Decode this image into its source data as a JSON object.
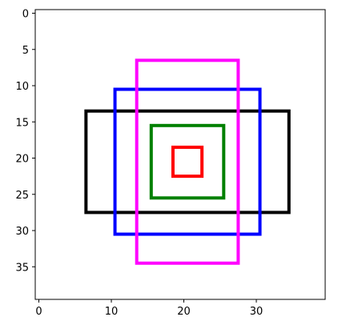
{
  "chart_data": {
    "type": "rectangles",
    "title": "",
    "xlabel": "",
    "ylabel": "",
    "xlim": [
      -0.5,
      39.5
    ],
    "ylim": [
      39.5,
      -0.5
    ],
    "y_inverted": true,
    "grid": false,
    "xticks": [
      0,
      10,
      20,
      30
    ],
    "yticks": [
      0,
      5,
      10,
      15,
      20,
      25,
      30,
      35
    ],
    "rectangles": [
      {
        "color": "#000000",
        "x0": 6.5,
        "y0": 13.5,
        "x1": 34.5,
        "y1": 27.5
      },
      {
        "color": "#0000ff",
        "x0": 10.5,
        "y0": 10.5,
        "x1": 30.5,
        "y1": 30.5
      },
      {
        "color": "#ff00ff",
        "x0": 13.5,
        "y0": 6.5,
        "x1": 27.5,
        "y1": 34.5
      },
      {
        "color": "#008000",
        "x0": 15.5,
        "y0": 15.5,
        "x1": 25.5,
        "y1": 25.5
      },
      {
        "color": "#ff0000",
        "x0": 18.5,
        "y0": 18.5,
        "x1": 22.5,
        "y1": 22.5
      }
    ]
  }
}
